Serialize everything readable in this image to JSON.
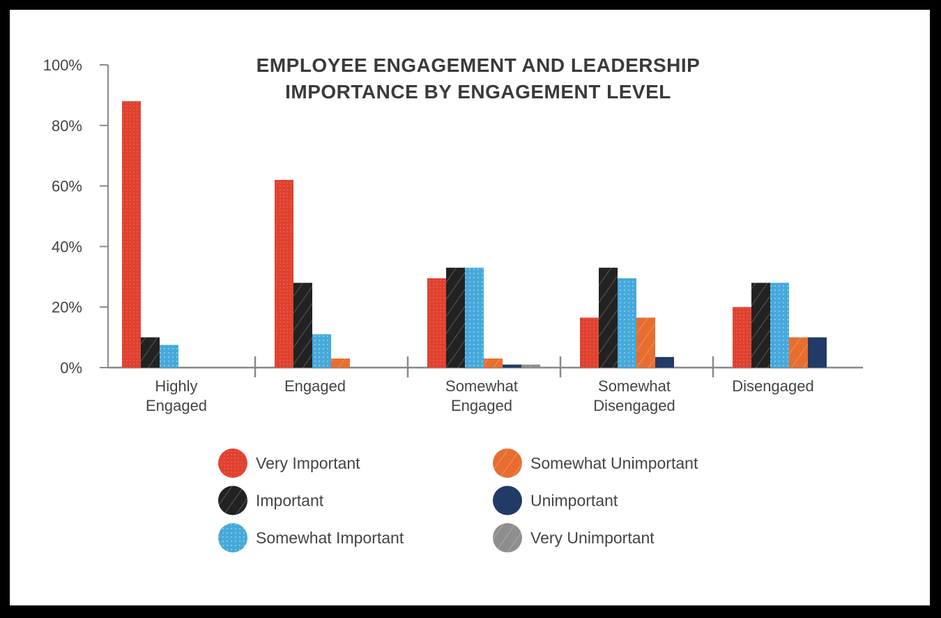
{
  "chart_data": {
    "type": "bar",
    "title": [
      "EMPLOYEE ENGAGEMENT AND LEADERSHIP",
      "IMPORTANCE BY ENGAGEMENT LEVEL"
    ],
    "xlabel": "",
    "ylabel": "",
    "ylim": [
      0,
      100
    ],
    "y_ticks": [
      "0%",
      "20%",
      "40%",
      "60%",
      "80%",
      "100%"
    ],
    "grid": false,
    "legend_placement": "bottom",
    "categories": [
      [
        "Highly",
        "Engaged"
      ],
      [
        "Engaged"
      ],
      [
        "Somewhat",
        "Engaged"
      ],
      [
        "Somewhat",
        "Disengaged"
      ],
      [
        "Disengaged"
      ]
    ],
    "series": [
      {
        "name": "Very Important",
        "color": "#e0412f",
        "pattern": "dots",
        "values": [
          88,
          62,
          29.5,
          16.5,
          20
        ]
      },
      {
        "name": "Important",
        "color": "#222222",
        "pattern": "hatch",
        "values": [
          10,
          28,
          33,
          33,
          28
        ]
      },
      {
        "name": "Somewhat Important",
        "color": "#45a9db",
        "pattern": "speckle",
        "values": [
          7.5,
          11,
          33,
          29.5,
          28
        ]
      },
      {
        "name": "Somewhat Unimportant",
        "color": "#e86e2f",
        "pattern": "hatch",
        "values": [
          0,
          3,
          3,
          16.5,
          10
        ]
      },
      {
        "name": "Unimportant",
        "color": "#223a66",
        "pattern": "solid",
        "values": [
          0,
          0,
          1,
          3.5,
          10
        ]
      },
      {
        "name": "Very Unimportant",
        "color": "#8e8e8e",
        "pattern": "hatch",
        "values": [
          0,
          0,
          1,
          0,
          0
        ]
      }
    ]
  }
}
